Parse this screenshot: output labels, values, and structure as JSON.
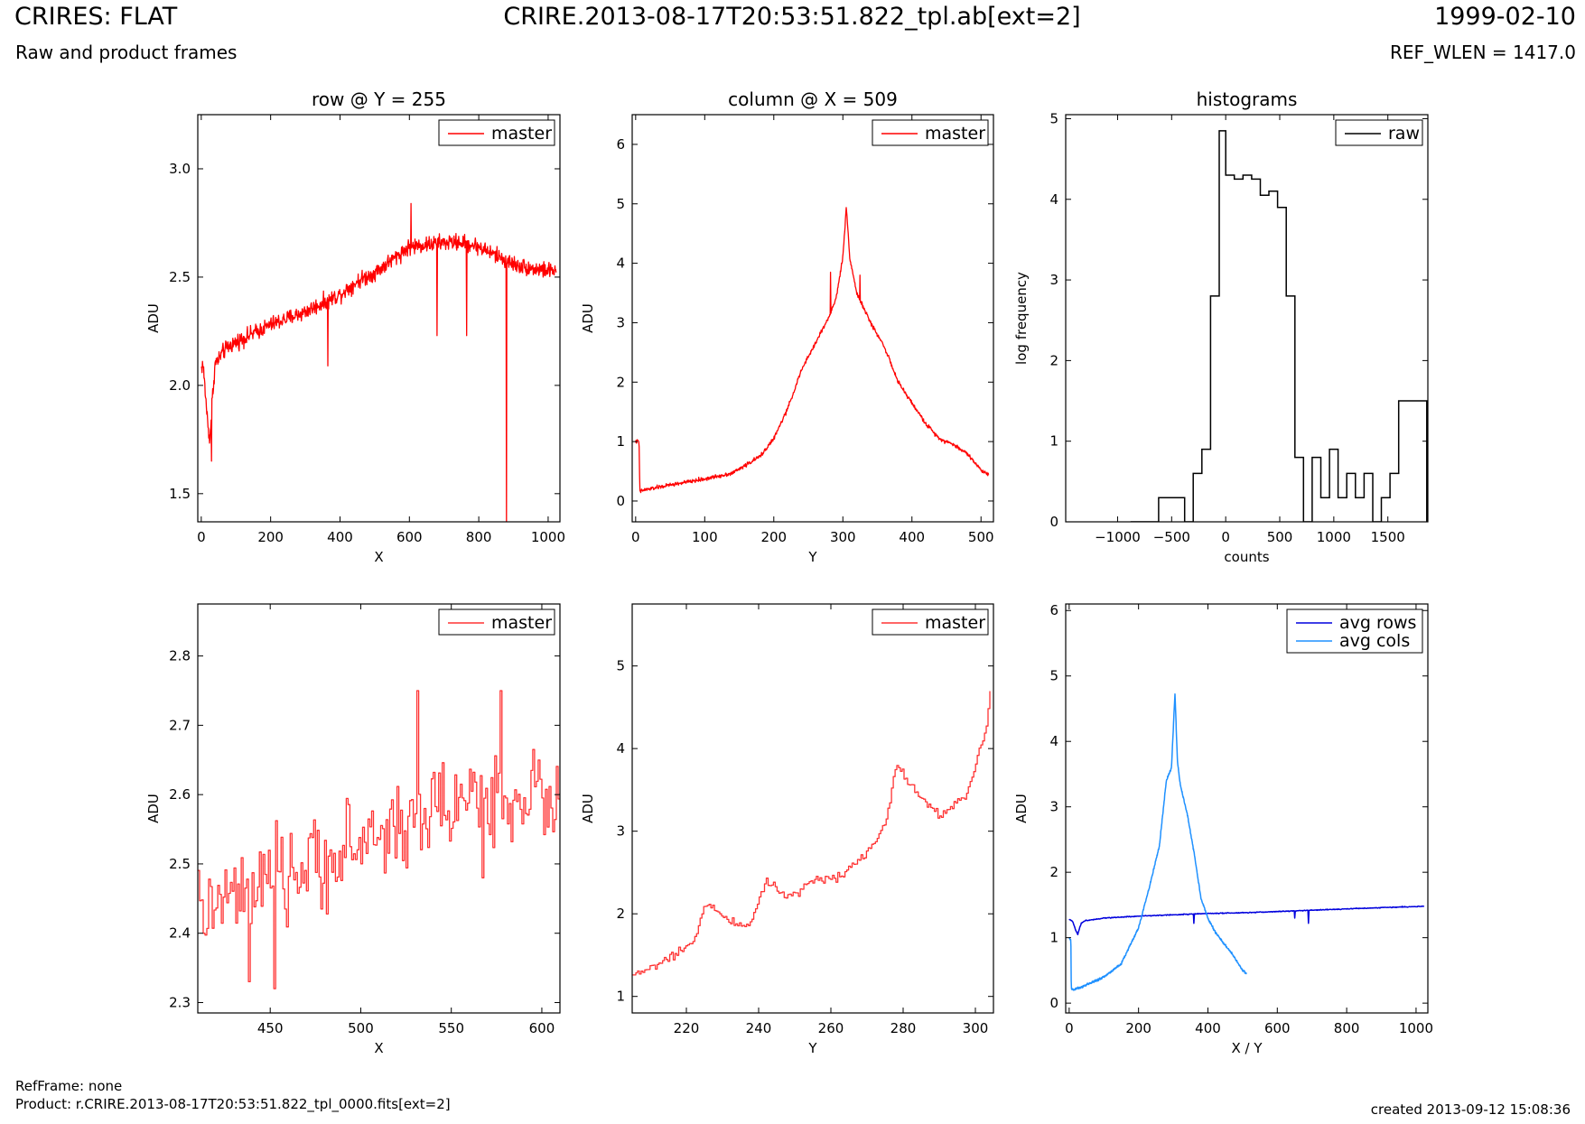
{
  "header": {
    "title": "CRIRES: FLAT",
    "subtitle": "Raw and product frames",
    "file": "CRIRE.2013-08-17T20:53:51.822_tpl.ab[ext=2]",
    "date": "1999-02-10",
    "ref_wlen": "REF_WLEN = 1417.0"
  },
  "footer": {
    "refframe": "RefFrame: none",
    "product": "Product: r.CRIRE.2013-08-17T20:53:51.822_tpl_0000.fits[ext=2]",
    "created": "created 2013-09-12 15:08:36"
  },
  "colors": {
    "master": "#ff0000",
    "master_zoom": "#ff3333",
    "raw": "#000000",
    "avg_rows": "#0000dd",
    "avg_cols": "#1e90ff"
  },
  "chart_data": [
    {
      "id": "row",
      "type": "line",
      "title": "row @ Y = 255",
      "xlabel": "X",
      "ylabel": "ADU",
      "xlim": [
        -10,
        1034
      ],
      "ylim": [
        1.37,
        3.25
      ],
      "xticks": [
        0,
        200,
        400,
        600,
        800,
        1000
      ],
      "yticks": [
        1.5,
        2.0,
        2.5,
        3.0
      ],
      "legend": "top-right",
      "series": [
        {
          "name": "master",
          "color": "#ff0000",
          "style": "noisy",
          "x": [
            0,
            5,
            10,
            20,
            25,
            30,
            35,
            40,
            50,
            60,
            80,
            100,
            150,
            200,
            250,
            300,
            350,
            400,
            450,
            500,
            550,
            600,
            650,
            700,
            750,
            800,
            850,
            900,
            950,
            1000,
            1023
          ],
          "y": [
            2.08,
            2.1,
            2.0,
            1.8,
            1.75,
            1.9,
            2.0,
            2.1,
            2.12,
            2.15,
            2.18,
            2.2,
            2.24,
            2.28,
            2.31,
            2.34,
            2.38,
            2.42,
            2.48,
            2.52,
            2.58,
            2.64,
            2.65,
            2.66,
            2.66,
            2.64,
            2.6,
            2.56,
            2.54,
            2.53,
            2.53
          ],
          "noise": 0.055,
          "spikes": [
            {
              "x": 30,
              "y": 1.65
            },
            {
              "x": 365,
              "y": 2.09
            },
            {
              "x": 605,
              "y": 2.84
            },
            {
              "x": 680,
              "y": 2.23
            },
            {
              "x": 765,
              "y": 2.23
            },
            {
              "x": 880,
              "y": 1.37
            }
          ]
        }
      ]
    },
    {
      "id": "column",
      "type": "line",
      "title": "column @ X = 509",
      "xlabel": "Y",
      "ylabel": "ADU",
      "xlim": [
        -5,
        518
      ],
      "ylim": [
        -0.35,
        6.5
      ],
      "xticks": [
        0,
        100,
        200,
        300,
        400,
        500
      ],
      "yticks": [
        0,
        1,
        2,
        3,
        4,
        5,
        6
      ],
      "legend": "top-right",
      "series": [
        {
          "name": "master",
          "color": "#ff0000",
          "style": "noisy",
          "x": [
            0,
            5,
            6,
            10,
            50,
            100,
            140,
            180,
            200,
            220,
            240,
            260,
            280,
            290,
            300,
            305,
            310,
            320,
            340,
            360,
            380,
            400,
            420,
            440,
            460,
            480,
            500,
            511
          ],
          "y": [
            1.0,
            1.0,
            0.15,
            0.18,
            0.27,
            0.37,
            0.47,
            0.75,
            1.05,
            1.55,
            2.2,
            2.65,
            3.1,
            3.4,
            4.1,
            4.95,
            4.1,
            3.5,
            3.0,
            2.6,
            2.0,
            1.65,
            1.3,
            1.05,
            0.95,
            0.8,
            0.52,
            0.45
          ],
          "noise": 0.05,
          "spikes": [
            {
              "x": 282,
              "y": 3.85
            },
            {
              "x": 325,
              "y": 3.8
            }
          ]
        }
      ]
    },
    {
      "id": "histograms",
      "type": "histogram",
      "title": "histograms",
      "xlabel": "counts",
      "ylabel": "log frequency",
      "xlim": [
        -1480,
        1870
      ],
      "ylim": [
        0,
        5.05
      ],
      "xticks": [
        -1000,
        -500,
        0,
        500,
        1000,
        1500
      ],
      "yticks": [
        0,
        1,
        2,
        3,
        4,
        5
      ],
      "legend": "top-right",
      "series": [
        {
          "name": "raw",
          "color": "#000000",
          "edges": [
            -880,
            -620,
            -540,
            -460,
            -380,
            -300,
            -220,
            -140,
            -60,
            0,
            80,
            160,
            240,
            320,
            400,
            480,
            560,
            640,
            720,
            800,
            880,
            960,
            1040,
            1120,
            1200,
            1280,
            1360,
            1440,
            1520,
            1600,
            1680,
            1760,
            1860
          ],
          "values": [
            0,
            0.3,
            0.3,
            0.3,
            0,
            0.6,
            0.9,
            2.8,
            4.85,
            4.3,
            4.25,
            4.3,
            4.25,
            4.05,
            4.1,
            3.9,
            2.8,
            0.8,
            0,
            0.8,
            0.3,
            0.9,
            0.3,
            0.6,
            0.3,
            0.6,
            0,
            0.3,
            0.6,
            1.5,
            1.5,
            1.5
          ]
        }
      ]
    },
    {
      "id": "row-zoom",
      "type": "line",
      "xlabel": "X",
      "ylabel": "ADU",
      "xlim": [
        410,
        610
      ],
      "ylim": [
        2.285,
        2.875
      ],
      "xticks": [
        450,
        500,
        550,
        600
      ],
      "yticks": [
        2.3,
        2.4,
        2.5,
        2.6,
        2.7,
        2.8
      ],
      "legend": "top-right",
      "series": [
        {
          "name": "master",
          "color": "#ff3333",
          "style": "steps",
          "x": [
            410,
            450,
            500,
            550,
            600,
            610
          ],
          "y": [
            2.43,
            2.47,
            2.53,
            2.59,
            2.6,
            2.58
          ],
          "noise": 0.07,
          "spikes": [
            {
              "x": 438,
              "y": 2.33
            },
            {
              "x": 452,
              "y": 2.32
            },
            {
              "x": 531,
              "y": 2.75
            },
            {
              "x": 567,
              "y": 2.48
            },
            {
              "x": 577,
              "y": 2.75
            }
          ]
        }
      ]
    },
    {
      "id": "column-zoom",
      "type": "line",
      "xlabel": "Y",
      "ylabel": "ADU",
      "xlim": [
        205,
        305
      ],
      "ylim": [
        0.8,
        5.75
      ],
      "xticks": [
        220,
        240,
        260,
        280,
        300
      ],
      "yticks": [
        1,
        2,
        3,
        4,
        5
      ],
      "legend": "top-right",
      "series": [
        {
          "name": "master",
          "color": "#ff3333",
          "style": "steps",
          "x": [
            205,
            215,
            222,
            225,
            232,
            237,
            242,
            248,
            255,
            262,
            270,
            275,
            278,
            283,
            290,
            297,
            300,
            303,
            304
          ],
          "y": [
            1.25,
            1.45,
            1.65,
            2.15,
            1.9,
            1.85,
            2.4,
            2.2,
            2.4,
            2.45,
            2.75,
            3.1,
            3.8,
            3.5,
            3.2,
            3.4,
            3.8,
            4.3,
            4.7
          ],
          "noise": 0.06,
          "spikes": []
        }
      ]
    },
    {
      "id": "averages",
      "type": "line",
      "xlabel": "X / Y",
      "ylabel": "ADU",
      "xlim": [
        -10,
        1034
      ],
      "ylim": [
        -0.15,
        6.1
      ],
      "xticks": [
        0,
        200,
        400,
        600,
        800,
        1000
      ],
      "yticks": [
        0,
        1,
        2,
        3,
        4,
        5,
        6
      ],
      "legend": "top-right",
      "series": [
        {
          "name": "avg rows",
          "color": "#0000dd",
          "style": "smooth",
          "x": [
            0,
            10,
            20,
            25,
            30,
            35,
            45,
            100,
            200,
            300,
            400,
            500,
            600,
            700,
            800,
            900,
            1023
          ],
          "y": [
            1.28,
            1.25,
            1.1,
            1.05,
            1.15,
            1.22,
            1.26,
            1.3,
            1.33,
            1.35,
            1.37,
            1.38,
            1.4,
            1.42,
            1.44,
            1.46,
            1.48
          ],
          "noise": 0.01,
          "spikes": [
            {
              "x": 360,
              "y": 1.22
            },
            {
              "x": 650,
              "y": 1.3
            },
            {
              "x": 690,
              "y": 1.22
            }
          ]
        },
        {
          "name": "avg cols",
          "color": "#1e90ff",
          "style": "smooth",
          "x": [
            0,
            5,
            6,
            10,
            50,
            100,
            150,
            200,
            230,
            260,
            280,
            295,
            305,
            312,
            320,
            340,
            360,
            380,
            400,
            420,
            440,
            470,
            500,
            511
          ],
          "y": [
            1.0,
            0.95,
            0.22,
            0.2,
            0.28,
            0.4,
            0.6,
            1.15,
            1.75,
            2.4,
            3.4,
            3.6,
            4.75,
            3.7,
            3.35,
            2.9,
            2.3,
            1.6,
            1.3,
            1.1,
            0.95,
            0.75,
            0.5,
            0.45
          ],
          "noise": 0.025,
          "spikes": []
        }
      ]
    }
  ]
}
